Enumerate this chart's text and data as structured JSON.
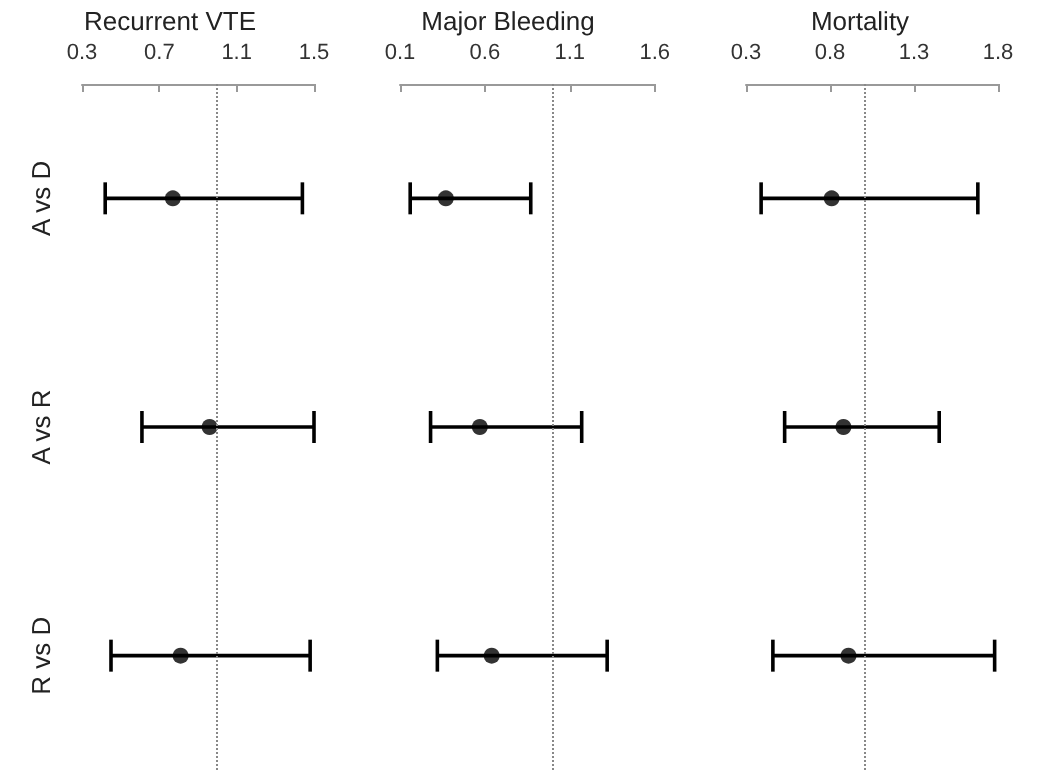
{
  "chart_data": [
    {
      "type": "scatter",
      "orientation": "horizontal",
      "title": "Recurrent VTE",
      "categories": [
        "A vs D",
        "A vs R",
        "R vs D"
      ],
      "values": [
        0.77,
        0.96,
        0.81
      ],
      "errors": [
        [
          0.42,
          1.44
        ],
        [
          0.61,
          1.5
        ],
        [
          0.45,
          1.48
        ]
      ],
      "color": "#000000",
      "marker": "circle",
      "xlim": [
        0.3,
        1.5
      ],
      "xticks": [
        0.3,
        0.7,
        1.1,
        1.5
      ],
      "ref_lines": [
        {
          "axis": "x",
          "value": 1,
          "line_style": "dotted"
        }
      ]
    },
    {
      "type": "scatter",
      "orientation": "horizontal",
      "title": "Major Bleeding",
      "categories": [
        null,
        null,
        null
      ],
      "values": [
        0.37,
        0.57,
        0.64
      ],
      "errors": [
        [
          0.16,
          0.87
        ],
        [
          0.28,
          1.17
        ],
        [
          0.32,
          1.32
        ]
      ],
      "color": "#000000",
      "marker": "circle",
      "xlim": [
        0.1,
        1.6
      ],
      "xticks": [
        0.1,
        0.6,
        1.1,
        1.6
      ],
      "ref_lines": [
        {
          "axis": "x",
          "value": 1,
          "line_style": "dotted"
        }
      ],
      "tick_labels": "x"
    },
    {
      "type": "scatter",
      "orientation": "horizontal",
      "title": "Mortality",
      "categories": [
        null,
        null,
        null
      ],
      "values": [
        0.81,
        0.88,
        0.91
      ],
      "errors": [
        [
          0.39,
          1.68
        ],
        [
          0.53,
          1.45
        ],
        [
          0.46,
          1.78
        ]
      ],
      "color": "#000000",
      "marker": "circle",
      "xlim": [
        0.3,
        1.8
      ],
      "xticks": [
        0.3,
        0.8,
        1.3,
        1.8
      ],
      "ref_lines": [
        {
          "axis": "x",
          "value": 1,
          "line_style": "dotted"
        }
      ],
      "tick_labels": "x"
    }
  ]
}
